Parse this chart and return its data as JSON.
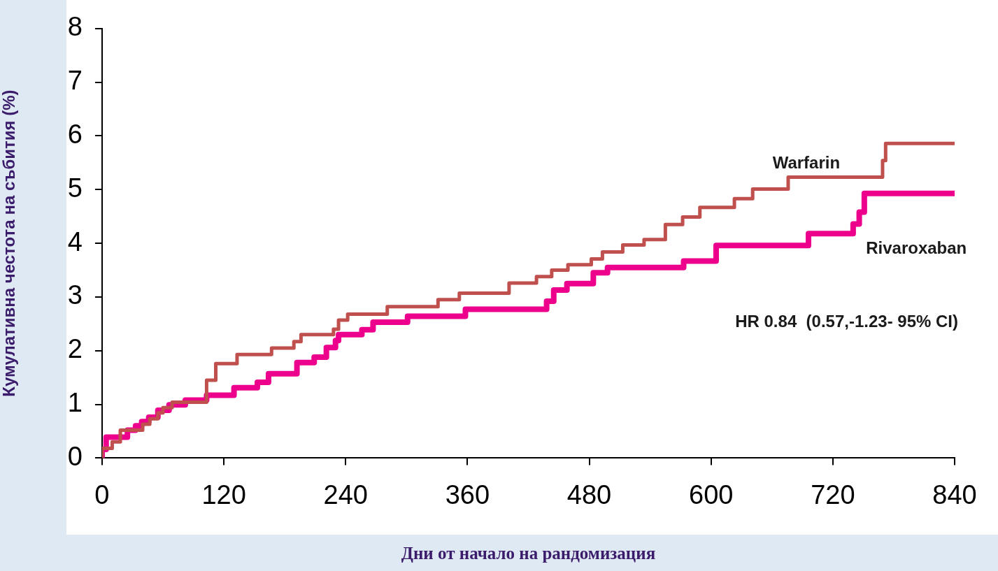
{
  "chart_data": {
    "type": "step",
    "xlabel": "Дни от начало на рандомизация",
    "ylabel": "Кумулативна честота на събития (%)",
    "xlim": [
      0,
      840
    ],
    "xticks": [
      0,
      120,
      240,
      360,
      480,
      600,
      720,
      840
    ],
    "ylim": [
      0,
      8
    ],
    "yticks": [
      0,
      1,
      2,
      3,
      4,
      5,
      6,
      7,
      8
    ],
    "grid": false,
    "legend": false,
    "marker": "none",
    "line_style": "solid",
    "annotations": [
      "HR 0.84  (0.57,-1.23- 95% CI)"
    ],
    "series": [
      {
        "name": "Warfarin",
        "color": "#c0504d",
        "x": [
          0,
          10,
          18,
          40,
          47,
          55,
          60,
          69,
          103,
          112,
          133,
          167,
          189,
          196,
          228,
          233,
          242,
          281,
          331,
          352,
          401,
          428,
          443,
          459,
          482,
          493,
          513,
          534,
          555,
          572,
          589,
          623,
          641,
          676,
          769,
          772,
          824,
          840
        ],
        "values": [
          0,
          0.18,
          0.3,
          0.52,
          0.63,
          0.73,
          0.84,
          0.94,
          1.04,
          1.45,
          1.76,
          1.93,
          2.05,
          2.17,
          2.3,
          2.4,
          2.57,
          2.68,
          2.82,
          2.95,
          3.07,
          3.26,
          3.38,
          3.5,
          3.6,
          3.71,
          3.84,
          3.97,
          4.07,
          4.35,
          4.49,
          4.67,
          4.83,
          5.01,
          5.23,
          5.54,
          5.86,
          5.86
        ]
      },
      {
        "name": "Rivaroxaban",
        "color": "#ec008c",
        "x": [
          0,
          4,
          25,
          33,
          39,
          46,
          55,
          66,
          82,
          103,
          130,
          153,
          164,
          192,
          209,
          221,
          230,
          233,
          256,
          267,
          301,
          358,
          438,
          445,
          458,
          484,
          498,
          573,
          605,
          696,
          740,
          746,
          751,
          794,
          840
        ],
        "values": [
          0,
          0.16,
          0.39,
          0.52,
          0.6,
          0.68,
          0.76,
          0.89,
          0.99,
          1.08,
          1.17,
          1.31,
          1.41,
          1.57,
          1.78,
          1.88,
          2.06,
          2.19,
          2.3,
          2.39,
          2.53,
          2.64,
          2.77,
          2.92,
          3.13,
          3.25,
          3.45,
          3.55,
          3.67,
          3.96,
          4.18,
          4.36,
          4.58,
          4.93,
          4.93
        ]
      }
    ]
  }
}
